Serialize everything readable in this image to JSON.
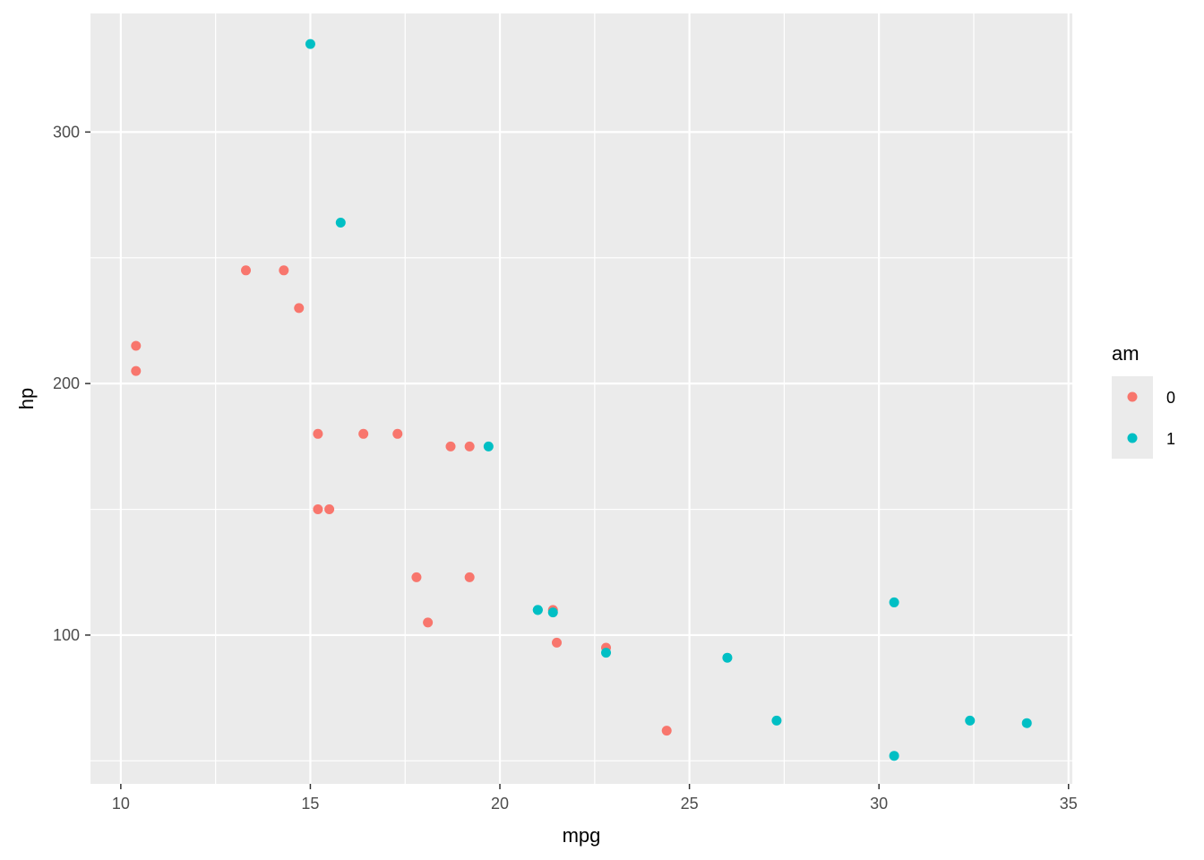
{
  "chart_data": {
    "type": "scatter",
    "xlabel": "mpg",
    "ylabel": "hp",
    "xlim": [
      9.2,
      35.1
    ],
    "ylim": [
      40.85,
      347.15
    ],
    "x_ticks": [
      10,
      15,
      20,
      25,
      30,
      35
    ],
    "x_minor_ticks": [
      12.5,
      17.5,
      22.5,
      27.5,
      32.5
    ],
    "y_ticks": [
      100,
      200,
      300
    ],
    "y_minor_ticks": [
      50,
      150,
      250
    ],
    "grid": true,
    "legend": {
      "title": "am",
      "position": "right"
    },
    "series": [
      {
        "name": "0",
        "color": "#F8766D",
        "points": [
          [
            21.4,
            110
          ],
          [
            18.7,
            175
          ],
          [
            18.1,
            105
          ],
          [
            14.3,
            245
          ],
          [
            24.4,
            62
          ],
          [
            22.8,
            95
          ],
          [
            19.2,
            123
          ],
          [
            17.8,
            123
          ],
          [
            16.4,
            180
          ],
          [
            17.3,
            180
          ],
          [
            15.2,
            180
          ],
          [
            10.4,
            205
          ],
          [
            10.4,
            215
          ],
          [
            14.7,
            230
          ],
          [
            21.5,
            97
          ],
          [
            15.5,
            150
          ],
          [
            15.2,
            150
          ],
          [
            13.3,
            245
          ],
          [
            19.2,
            175
          ]
        ]
      },
      {
        "name": "1",
        "color": "#00BFC4",
        "points": [
          [
            21.0,
            110
          ],
          [
            21.0,
            110
          ],
          [
            22.8,
            93
          ],
          [
            32.4,
            66
          ],
          [
            30.4,
            52
          ],
          [
            33.9,
            65
          ],
          [
            27.3,
            66
          ],
          [
            26.0,
            91
          ],
          [
            30.4,
            113
          ],
          [
            15.8,
            264
          ],
          [
            19.7,
            175
          ],
          [
            15.0,
            335
          ],
          [
            21.4,
            109
          ]
        ]
      }
    ]
  }
}
